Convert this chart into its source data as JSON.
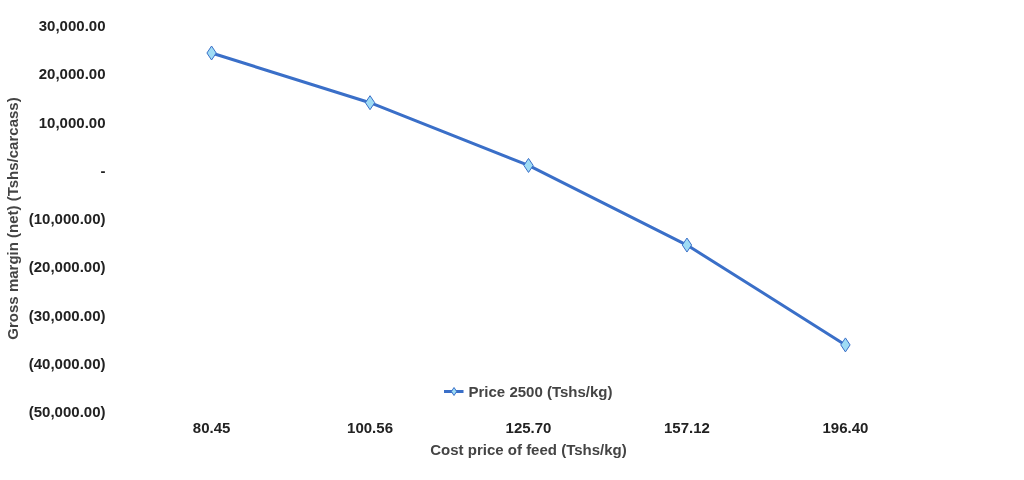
{
  "chart_data": {
    "type": "line",
    "xlabel": "Cost price of feed (Tshs/kg)",
    "ylabel": "Gross margin (net) (Tshs/carcass)",
    "categories": [
      "80.45",
      "100.56",
      "125.70",
      "157.12",
      "196.40"
    ],
    "series": [
      {
        "name": "Price 2500 (Tshs/kg)",
        "color": "#3a6fc8",
        "values": [
          24300,
          14000,
          1000,
          -15500,
          -36200
        ]
      }
    ],
    "ylim": [
      -50000,
      30000
    ],
    "yticks": [
      {
        "value": -50000,
        "label": "(50,000.00)"
      },
      {
        "value": -40000,
        "label": "(40,000.00)"
      },
      {
        "value": -30000,
        "label": "(30,000.00)"
      },
      {
        "value": -20000,
        "label": "(20,000.00)"
      },
      {
        "value": -10000,
        "label": "(10,000.00)"
      },
      {
        "value": 0,
        "label": "-"
      },
      {
        "value": 10000,
        "label": "10,000.00"
      },
      {
        "value": 20000,
        "label": "20,000.00"
      },
      {
        "value": 30000,
        "label": "30,000.00"
      }
    ],
    "marker": "diamond",
    "legend": "bottom",
    "grid": false
  }
}
